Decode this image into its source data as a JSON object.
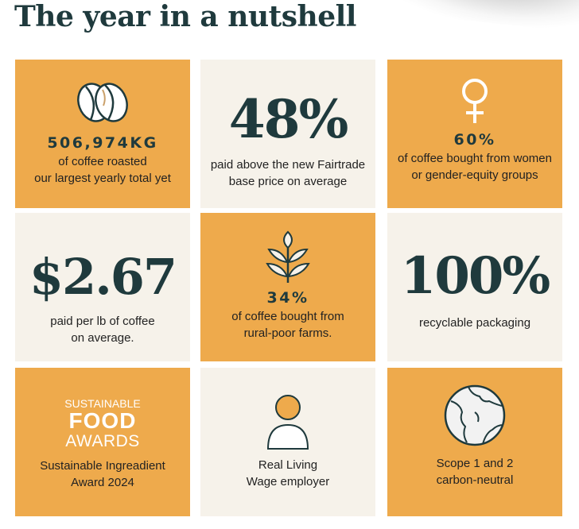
{
  "title": "The year in a nutshell",
  "tiles": [
    {
      "stat": "506,974KG",
      "line1": "of coffee roasted",
      "line2": "our largest yearly total yet",
      "icon": "coffee-beans-icon"
    },
    {
      "big": "48%",
      "line1": "paid above the new Fairtrade",
      "line2": "base price on average"
    },
    {
      "stat": "60%",
      "line1": "of coffee bought from women",
      "line2": "or gender-equity groups",
      "icon": "female-symbol-icon"
    },
    {
      "big": "$2.67",
      "line1": "paid per lb of coffee",
      "line2": "on average."
    },
    {
      "stat": "34%",
      "line1": "of coffee bought from",
      "line2": "rural-poor farms.",
      "icon": "wheat-icon"
    },
    {
      "big": "100%",
      "line1": "recyclable packaging"
    },
    {
      "logo": {
        "line1": "SUSTAINABLE",
        "line2": "FOOD",
        "line3": "AWARDS"
      },
      "line1": "Sustainable Ingreadient",
      "line2": "Award 2024"
    },
    {
      "line1": "Real Living",
      "line2": "Wage employer",
      "icon": "person-icon"
    },
    {
      "line1": "Scope 1 and 2",
      "line2": "carbon-neutral",
      "icon": "globe-icon"
    }
  ],
  "colors": {
    "orange": "#eeaa4c",
    "cream": "#f6f2ea",
    "ink": "#1f3a3d"
  }
}
